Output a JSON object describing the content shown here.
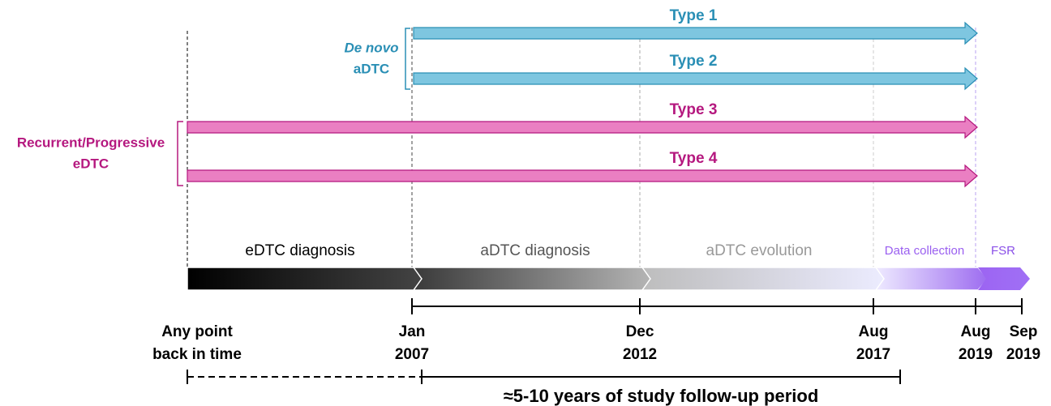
{
  "groups": [
    {
      "label": [
        "De novo",
        "aDTC"
      ],
      "types": [
        "Type 1",
        "Type 2"
      ]
    },
    {
      "label": [
        "Recurrent/Progressive",
        "eDTC"
      ],
      "types": [
        "Type 3",
        "Type 4"
      ]
    }
  ],
  "phases": [
    "eDTC diagnosis",
    "aDTC diagnosis",
    "aDTC evolution",
    "Data collection",
    "FSR"
  ],
  "timeline": [
    [
      "Any point",
      "back in time"
    ],
    [
      "Jan",
      "2007"
    ],
    [
      "Dec",
      "2012"
    ],
    [
      "Aug",
      "2017"
    ],
    [
      "Aug",
      "2019"
    ],
    [
      "Sep",
      "2019"
    ]
  ],
  "footer": "≈5-10 years of study follow-up period"
}
